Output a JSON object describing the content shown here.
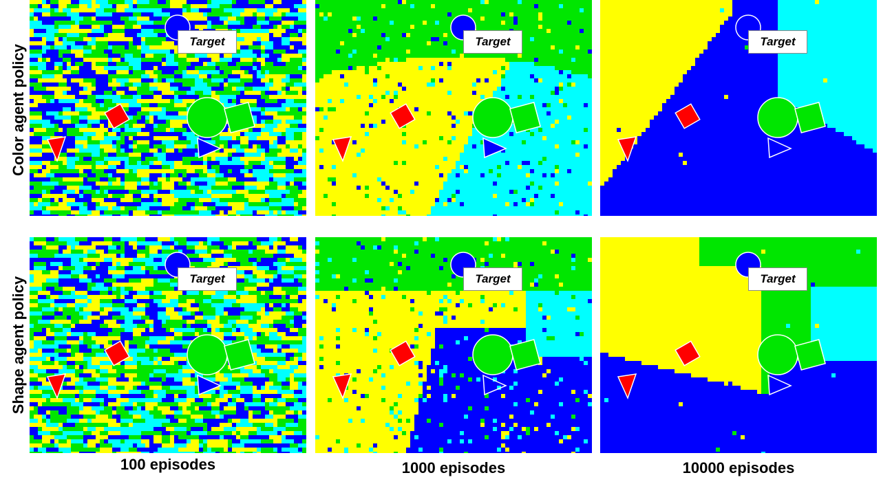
{
  "figure": {
    "row_labels": [
      "Color agent policy",
      "Shape agent policy"
    ],
    "col_labels": [
      "100 episodes",
      "1000 episodes",
      "10000 episodes"
    ],
    "target_label": "Target",
    "colors": {
      "blue": "#0000ff",
      "green": "#00e600",
      "yellow": "#ffff00",
      "cyan": "#00ffff",
      "red": "#ff0000",
      "outline": "#ffffff"
    },
    "objects": [
      {
        "shape": "circle",
        "color": "blue",
        "role": "target"
      },
      {
        "shape": "circle",
        "color": "green"
      },
      {
        "shape": "square",
        "color": "green"
      },
      {
        "shape": "diamond",
        "color": "red"
      },
      {
        "shape": "triangle-down",
        "color": "red"
      },
      {
        "shape": "triangle-right",
        "color": "blue"
      }
    ],
    "panels": [
      {
        "row": 0,
        "col": 0,
        "pattern": "noise",
        "episodes": 100,
        "agent": "color"
      },
      {
        "row": 0,
        "col": 1,
        "pattern": "color-1000",
        "episodes": 1000,
        "agent": "color"
      },
      {
        "row": 0,
        "col": 2,
        "pattern": "color-10000",
        "episodes": 10000,
        "agent": "color",
        "triangle_hollow": true
      },
      {
        "row": 1,
        "col": 0,
        "pattern": "noise",
        "episodes": 100,
        "agent": "shape"
      },
      {
        "row": 1,
        "col": 1,
        "pattern": "shape-1000",
        "episodes": 1000,
        "agent": "shape",
        "triangle_hollow": true
      },
      {
        "row": 1,
        "col": 2,
        "pattern": "shape-10000",
        "episodes": 10000,
        "agent": "shape",
        "triangle_hollow": true
      }
    ]
  }
}
